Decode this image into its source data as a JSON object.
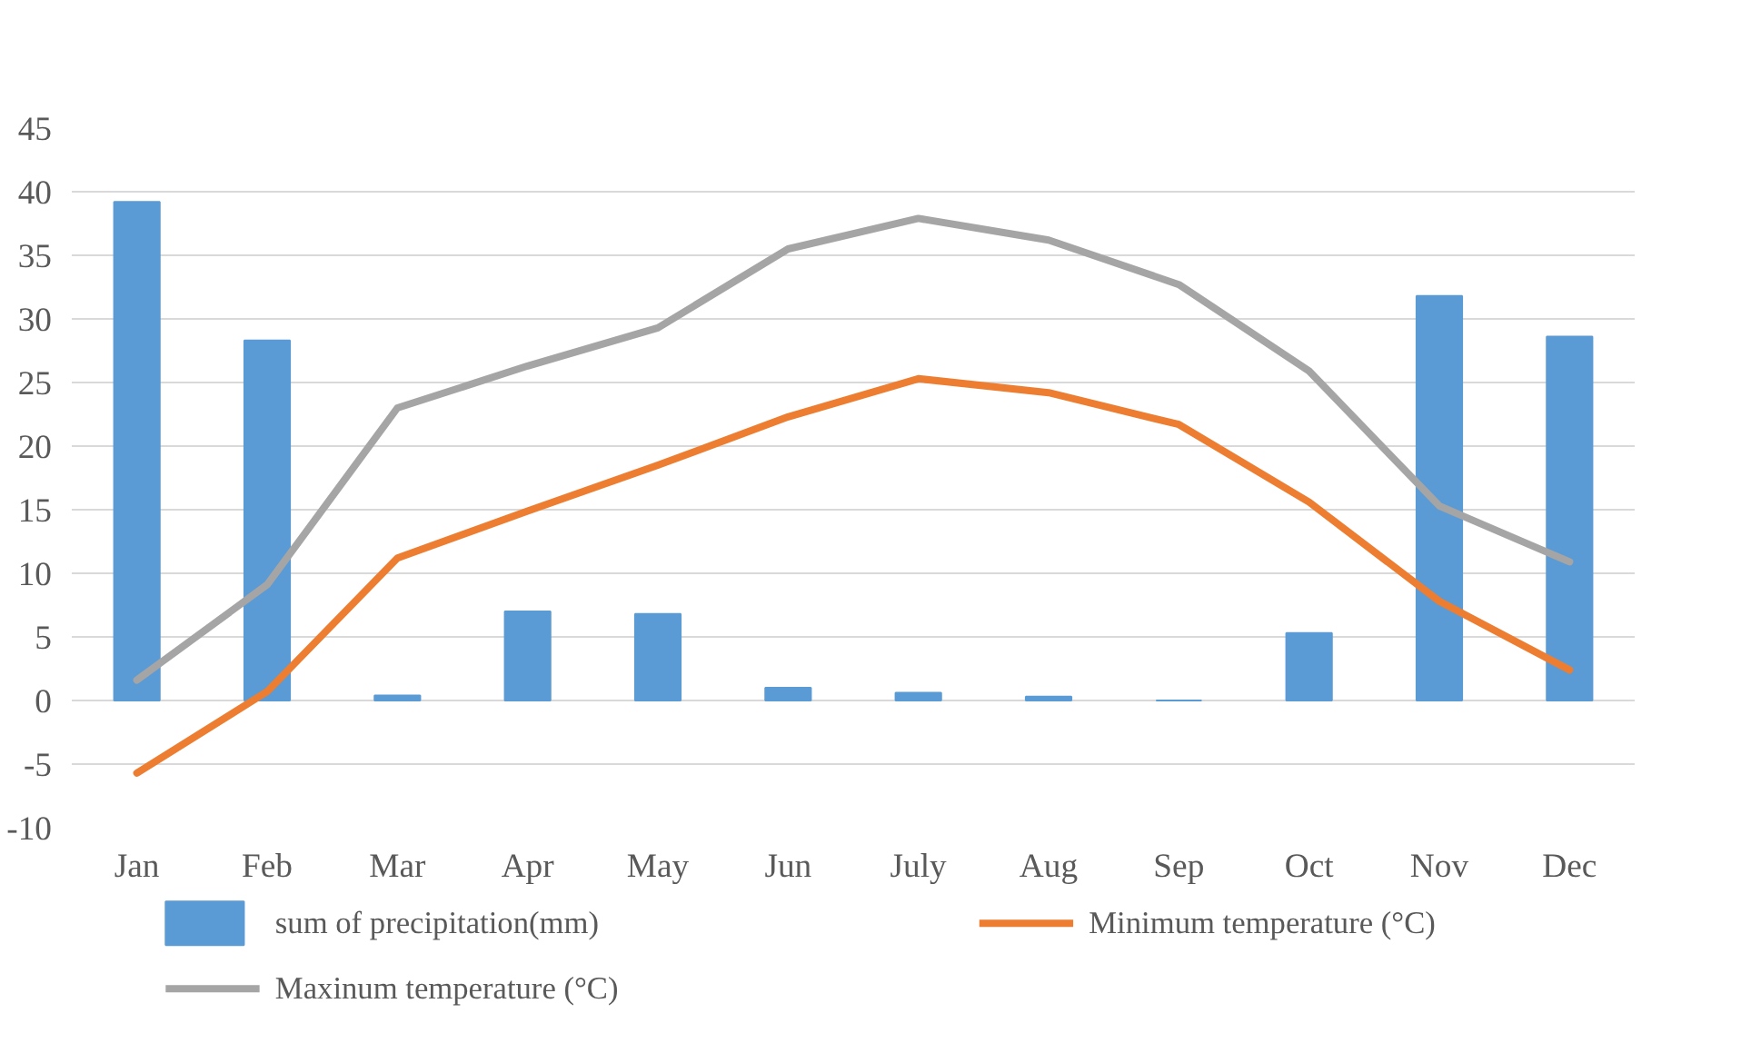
{
  "chart_data": {
    "type": "bar",
    "categories": [
      "Jan",
      "Feb",
      "Mar",
      "Apr",
      "May",
      "Jun",
      "July",
      "Aug",
      "Sep",
      "Oct",
      "Nov",
      "Dec"
    ],
    "ylim": [
      -10,
      45
    ],
    "yticks": [
      -10,
      -5,
      0,
      5,
      10,
      15,
      20,
      25,
      30,
      35,
      40,
      45
    ],
    "grid": "y",
    "legend": "bottom",
    "series": [
      {
        "name": "sum of precipitation(mm)",
        "color": "#5b9bd5",
        "values": [
          39.2,
          28.3,
          0.4,
          7.0,
          6.8,
          1.0,
          0.6,
          0.3,
          0,
          5.3,
          31.8,
          28.6
        ]
      },
      {
        "name": "Minimum  temperature (°C)",
        "type": "line",
        "color": "#ed7d31",
        "values": [
          -5.7,
          0.7,
          11.2,
          14.9,
          18.5,
          22.3,
          25.3,
          24.2,
          21.7,
          15.6,
          7.8,
          2.4
        ]
      },
      {
        "name": "Maxinum  temperature (°C)",
        "type": "line",
        "color": "#a5a5a5",
        "values": [
          1.6,
          9.1,
          23.0,
          26.3,
          29.3,
          35.5,
          37.9,
          36.2,
          32.7,
          25.9,
          15.3,
          10.9
        ]
      }
    ]
  }
}
